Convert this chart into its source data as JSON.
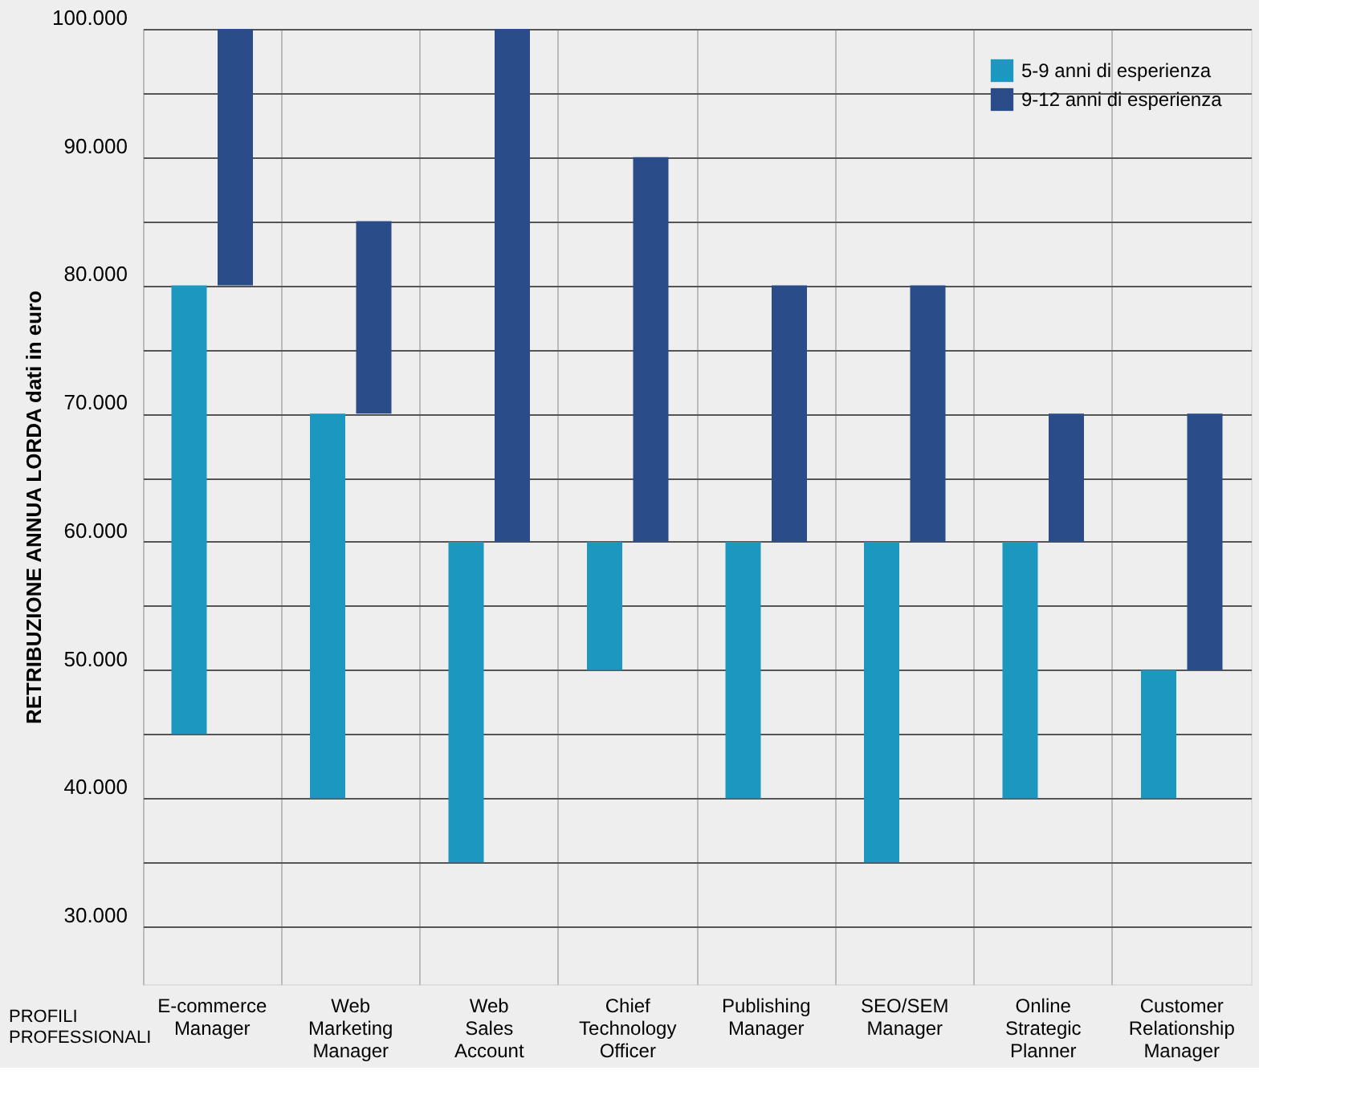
{
  "chart_data": {
    "type": "bar",
    "ylabel": "RETRIBUZIONE ANNUA LORDA  dati in euro",
    "xlabel": "PROFILI PROFESSIONALI",
    "categories": [
      "E-commerce Manager",
      "Web Marketing Manager",
      "Web Sales Account",
      "Chief Technology Officer",
      "Publishing Manager",
      "SEO/SEM Manager",
      "Online Strategic Planner",
      "Customer Relationship Manager"
    ],
    "series": [
      {
        "name": "5-9 anni di esperienza",
        "color": "#1b97c0",
        "base": [
          45000,
          40000,
          35000,
          50000,
          40000,
          35000,
          40000,
          40000
        ],
        "values": [
          35000,
          30000,
          25000,
          10000,
          20000,
          25000,
          20000,
          10000
        ]
      },
      {
        "name": "9-12 anni di esperienza",
        "color": "#2a4d8a",
        "base": [
          80000,
          70000,
          60000,
          60000,
          60000,
          60000,
          60000,
          50000
        ],
        "values": [
          20000,
          15000,
          40000,
          30000,
          20000,
          20000,
          10000,
          20000
        ]
      }
    ],
    "ylim": [
      25500,
      100000
    ],
    "yticks": [
      {
        "value": 30000,
        "label": "30.000"
      },
      {
        "value": 35000,
        "label": null
      },
      {
        "value": 40000,
        "label": "40.000"
      },
      {
        "value": 45000,
        "label": null
      },
      {
        "value": 50000,
        "label": "50.000"
      },
      {
        "value": 55000,
        "label": null
      },
      {
        "value": 60000,
        "label": "60.000"
      },
      {
        "value": 65000,
        "label": null
      },
      {
        "value": 70000,
        "label": "70.000"
      },
      {
        "value": 75000,
        "label": null
      },
      {
        "value": 80000,
        "label": "80.000"
      },
      {
        "value": 85000,
        "label": null
      },
      {
        "value": 90000,
        "label": "90.000"
      },
      {
        "value": 95000,
        "label": null
      },
      {
        "value": 100000,
        "label": "100.000"
      }
    ],
    "grid": true,
    "legend": "top right"
  }
}
